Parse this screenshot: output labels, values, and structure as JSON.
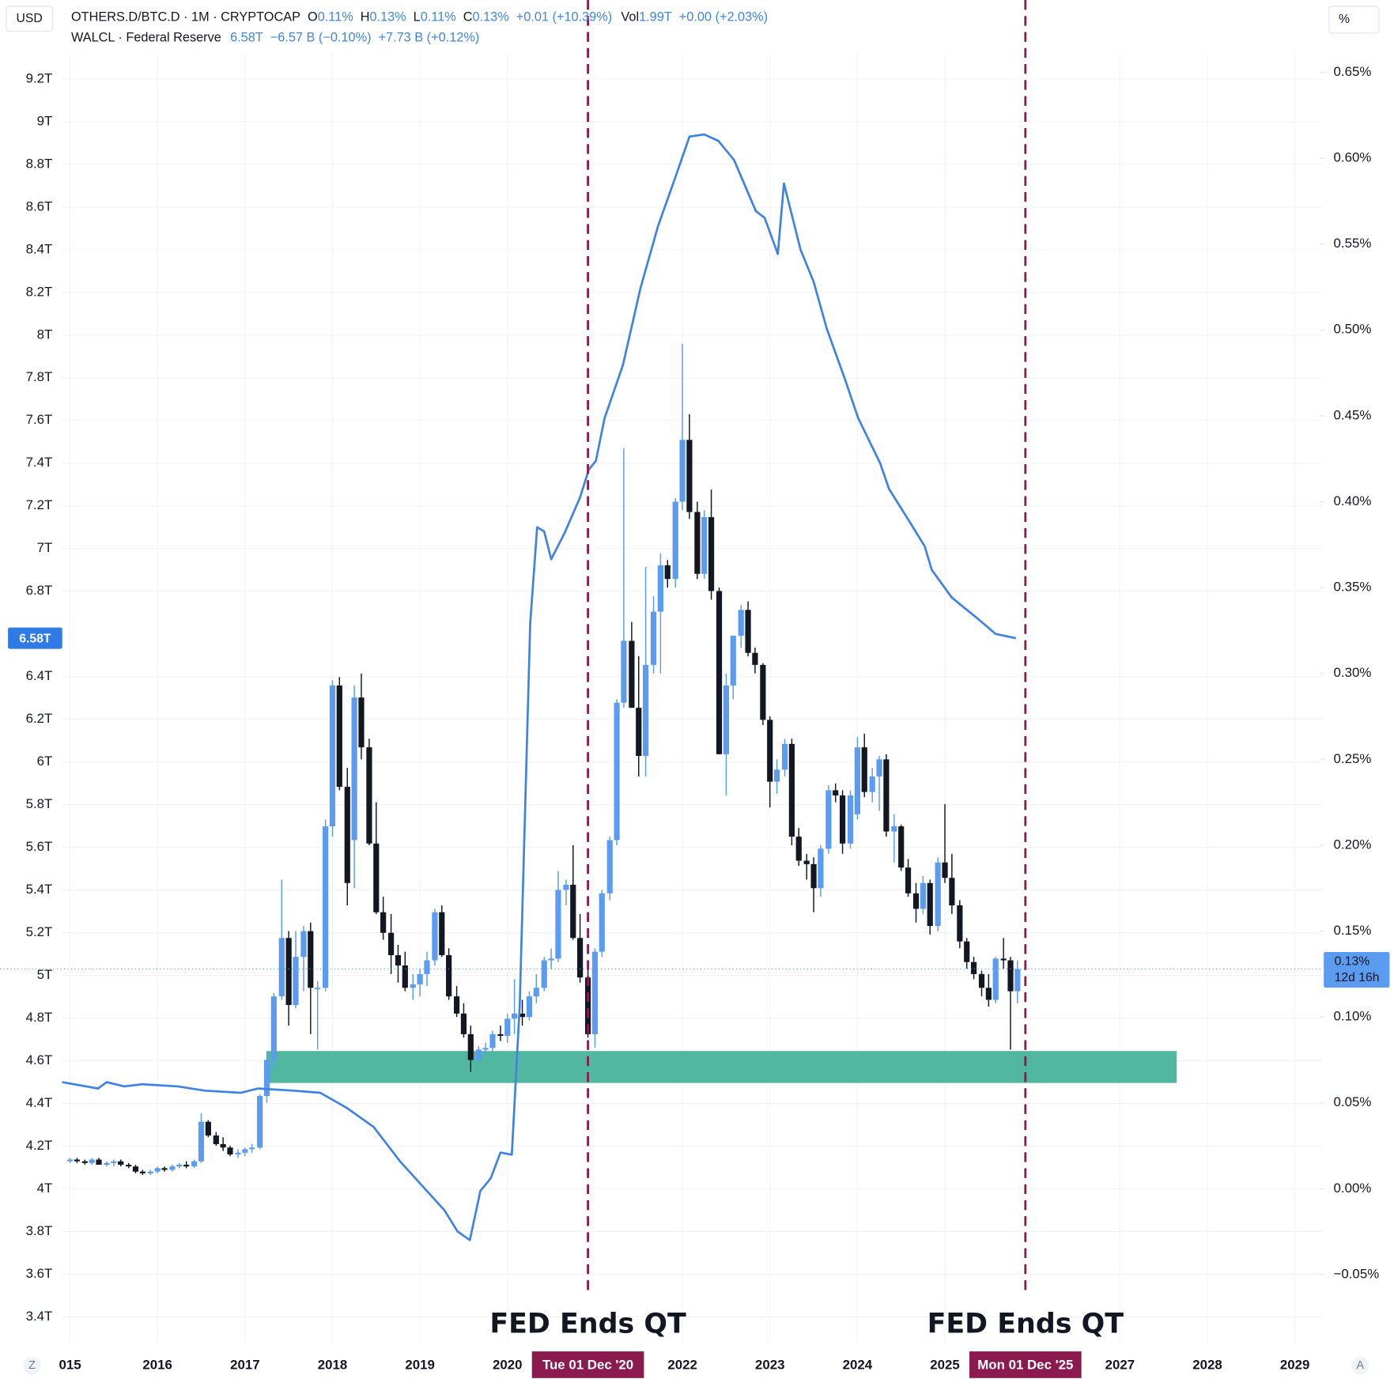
{
  "chart_data": {
    "type": "candlestick",
    "units": {
      "left": "USD",
      "right": "%"
    },
    "corner_buttons": [
      "Z",
      "A"
    ],
    "legend": {
      "symbol": "OTHERS.D/BTC.D · 1M · CRYPTOCAP",
      "o_label": "O",
      "o": "0.11%",
      "h_label": "H",
      "h": "0.13%",
      "l_label": "L",
      "l": "0.11%",
      "c_label": "C",
      "c": "0.13%",
      "change": "+0.01 (+10.39%)",
      "vol_label": "Vol",
      "vol": "1.99T",
      "vol_change": "+0.00 (+2.03%)",
      "line_value": "6.58T",
      "line_change": "−6.57 B (−0.10%)",
      "line_change2": "+7.73 B (+0.12%)"
    },
    "axis": "y2",
    "up_color": "#5b9bf0",
    "down_color": "#131722",
    "x": [
      2015.0,
      2015.08,
      2015.17,
      2015.25,
      2015.33,
      2015.42,
      2015.5,
      2015.58,
      2015.67,
      2015.75,
      2015.83,
      2015.92,
      2016.0,
      2016.08,
      2016.17,
      2016.25,
      2016.33,
      2016.42,
      2016.5,
      2016.58,
      2016.67,
      2016.75,
      2016.83,
      2016.92,
      2017.0,
      2017.08,
      2017.17,
      2017.25,
      2017.33,
      2017.42,
      2017.5,
      2017.58,
      2017.67,
      2017.75,
      2017.83,
      2017.92,
      2018.0,
      2018.08,
      2018.17,
      2018.25,
      2018.33,
      2018.42,
      2018.5,
      2018.58,
      2018.67,
      2018.75,
      2018.83,
      2018.92,
      2019.0,
      2019.08,
      2019.17,
      2019.25,
      2019.33,
      2019.42,
      2019.5,
      2019.58,
      2019.67,
      2019.75,
      2019.83,
      2019.92,
      2020.0,
      2020.08,
      2020.17,
      2020.25,
      2020.33,
      2020.42,
      2020.5,
      2020.58,
      2020.67,
      2020.75,
      2020.83,
      2020.92,
      2021.0,
      2021.08,
      2021.17,
      2021.25,
      2021.33,
      2021.42,
      2021.5,
      2021.58,
      2021.67,
      2021.75,
      2021.83,
      2021.92,
      2022.0,
      2022.08,
      2022.17,
      2022.25,
      2022.33,
      2022.42,
      2022.5,
      2022.58,
      2022.67,
      2022.75,
      2022.83,
      2022.92,
      2023.0,
      2023.08,
      2023.17,
      2023.25,
      2023.33,
      2023.42,
      2023.5,
      2023.58,
      2023.67,
      2023.75,
      2023.83,
      2023.92,
      2024.0,
      2024.08,
      2024.17,
      2024.25,
      2024.33,
      2024.42,
      2024.5,
      2024.58,
      2024.67,
      2024.75,
      2024.83,
      2024.92,
      2025.0,
      2025.08,
      2025.17,
      2025.25,
      2025.33,
      2025.42,
      2025.5,
      2025.58,
      2025.67,
      2025.75,
      2025.83
    ],
    "open": [
      0.016,
      0.017,
      0.016,
      0.015,
      0.017,
      0.014,
      0.015,
      0.016,
      0.014,
      0.013,
      0.01,
      0.009,
      0.01,
      0.012,
      0.011,
      0.013,
      0.014,
      0.013,
      0.016,
      0.039,
      0.031,
      0.026,
      0.024,
      0.02,
      0.021,
      0.023,
      0.024,
      0.054,
      0.075,
      0.112,
      0.146,
      0.107,
      0.135,
      0.15,
      0.117,
      0.117,
      0.211,
      0.293,
      0.234,
      0.203,
      0.286,
      0.257,
      0.201,
      0.161,
      0.149,
      0.136,
      0.13,
      0.117,
      0.119,
      0.125,
      0.133,
      0.161,
      0.136,
      0.112,
      0.102,
      0.09,
      0.075,
      0.081,
      0.082,
      0.09,
      0.089,
      0.099,
      0.102,
      0.1,
      0.112,
      0.117,
      0.133,
      0.134,
      0.174,
      0.177,
      0.146,
      0.123,
      0.09,
      0.138,
      0.172,
      0.203,
      0.283,
      0.319,
      0.28,
      0.252,
      0.305,
      0.336,
      0.363,
      0.355,
      0.4,
      0.436,
      0.394,
      0.358,
      0.391,
      0.348,
      0.253,
      0.293,
      0.322,
      0.337,
      0.312,
      0.305,
      0.273,
      0.237,
      0.244,
      0.259,
      0.205,
      0.191,
      0.189,
      0.175,
      0.198,
      0.232,
      0.229,
      0.201,
      0.218,
      0.257,
      0.231,
      0.24,
      0.25,
      0.208,
      0.211,
      0.187,
      0.172,
      0.163,
      0.178,
      0.153,
      0.19,
      0.181,
      0.165,
      0.144,
      0.132,
      0.125,
      0.117,
      0.11,
      0.134,
      0.133,
      0.115
    ],
    "high": [
      0.018,
      0.018,
      0.017,
      0.018,
      0.018,
      0.016,
      0.017,
      0.017,
      0.015,
      0.014,
      0.011,
      0.011,
      0.013,
      0.013,
      0.014,
      0.015,
      0.016,
      0.017,
      0.044,
      0.04,
      0.033,
      0.03,
      0.025,
      0.023,
      0.024,
      0.026,
      0.055,
      0.08,
      0.114,
      0.18,
      0.15,
      0.15,
      0.153,
      0.155,
      0.121,
      0.215,
      0.296,
      0.298,
      0.245,
      0.293,
      0.3,
      0.262,
      0.225,
      0.17,
      0.16,
      0.142,
      0.138,
      0.125,
      0.128,
      0.138,
      0.163,
      0.165,
      0.14,
      0.118,
      0.108,
      0.095,
      0.083,
      0.085,
      0.092,
      0.095,
      0.102,
      0.122,
      0.11,
      0.115,
      0.125,
      0.135,
      0.14,
      0.185,
      0.18,
      0.2,
      0.16,
      0.13,
      0.14,
      0.174,
      0.205,
      0.285,
      0.431,
      0.33,
      0.31,
      0.362,
      0.345,
      0.37,
      0.366,
      0.402,
      0.492,
      0.451,
      0.4,
      0.395,
      0.407,
      0.35,
      0.3,
      0.322,
      0.34,
      0.342,
      0.315,
      0.306,
      0.275,
      0.25,
      0.262,
      0.262,
      0.21,
      0.195,
      0.193,
      0.2,
      0.235,
      0.236,
      0.232,
      0.232,
      0.263,
      0.265,
      0.245,
      0.252,
      0.253,
      0.218,
      0.212,
      0.192,
      0.178,
      0.182,
      0.18,
      0.193,
      0.224,
      0.195,
      0.168,
      0.146,
      0.135,
      0.127,
      0.125,
      0.135,
      0.146,
      0.135,
      0.133
    ],
    "low": [
      0.015,
      0.015,
      0.014,
      0.014,
      0.014,
      0.013,
      0.013,
      0.013,
      0.012,
      0.009,
      0.008,
      0.008,
      0.009,
      0.01,
      0.01,
      0.012,
      0.012,
      0.012,
      0.015,
      0.03,
      0.025,
      0.022,
      0.019,
      0.018,
      0.019,
      0.021,
      0.023,
      0.05,
      0.07,
      0.11,
      0.095,
      0.105,
      0.115,
      0.09,
      0.081,
      0.115,
      0.205,
      0.232,
      0.165,
      0.175,
      0.25,
      0.2,
      0.16,
      0.145,
      0.125,
      0.12,
      0.115,
      0.11,
      0.112,
      0.118,
      0.13,
      0.135,
      0.11,
      0.1,
      0.088,
      0.068,
      0.073,
      0.078,
      0.08,
      0.086,
      0.085,
      0.09,
      0.095,
      0.098,
      0.108,
      0.115,
      0.128,
      0.132,
      0.165,
      0.145,
      0.12,
      0.088,
      0.082,
      0.135,
      0.168,
      0.2,
      0.28,
      0.28,
      0.24,
      0.24,
      0.3,
      0.3,
      0.35,
      0.35,
      0.395,
      0.39,
      0.355,
      0.355,
      0.343,
      0.253,
      0.229,
      0.285,
      0.315,
      0.31,
      0.3,
      0.27,
      0.222,
      0.23,
      0.24,
      0.2,
      0.188,
      0.18,
      0.161,
      0.17,
      0.195,
      0.225,
      0.195,
      0.198,
      0.215,
      0.228,
      0.225,
      0.22,
      0.205,
      0.19,
      0.185,
      0.17,
      0.155,
      0.16,
      0.148,
      0.15,
      0.178,
      0.16,
      0.14,
      0.128,
      0.122,
      0.112,
      0.106,
      0.108,
      0.128,
      0.081,
      0.108
    ],
    "close": [
      0.017,
      0.016,
      0.015,
      0.017,
      0.014,
      0.015,
      0.016,
      0.014,
      0.013,
      0.01,
      0.009,
      0.01,
      0.012,
      0.011,
      0.013,
      0.014,
      0.013,
      0.016,
      0.039,
      0.031,
      0.026,
      0.024,
      0.02,
      0.021,
      0.023,
      0.024,
      0.054,
      0.075,
      0.112,
      0.146,
      0.107,
      0.135,
      0.15,
      0.117,
      0.117,
      0.211,
      0.293,
      0.234,
      0.178,
      0.286,
      0.257,
      0.201,
      0.161,
      0.149,
      0.136,
      0.13,
      0.117,
      0.119,
      0.125,
      0.133,
      0.161,
      0.136,
      0.112,
      0.102,
      0.09,
      0.075,
      0.081,
      0.082,
      0.09,
      0.089,
      0.099,
      0.102,
      0.1,
      0.112,
      0.117,
      0.133,
      0.134,
      0.174,
      0.177,
      0.146,
      0.123,
      0.09,
      0.138,
      0.172,
      0.203,
      0.283,
      0.319,
      0.28,
      0.252,
      0.305,
      0.336,
      0.363,
      0.355,
      0.4,
      0.436,
      0.394,
      0.358,
      0.391,
      0.348,
      0.253,
      0.293,
      0.322,
      0.337,
      0.312,
      0.305,
      0.273,
      0.237,
      0.244,
      0.259,
      0.205,
      0.191,
      0.189,
      0.175,
      0.198,
      0.232,
      0.229,
      0.201,
      0.229,
      0.257,
      0.231,
      0.24,
      0.25,
      0.208,
      0.211,
      0.187,
      0.172,
      0.163,
      0.178,
      0.153,
      0.19,
      0.181,
      0.165,
      0.144,
      0.132,
      0.125,
      0.117,
      0.11,
      0.134,
      0.133,
      0.115,
      0.128
    ],
    "lines": [
      {
        "name": "WALCL · Federal Reserve",
        "color": "#3f82e6",
        "axis": "y",
        "x": [
          2014.91,
          2015.32,
          2015.42,
          2015.62,
          2015.83,
          2016.23,
          2016.54,
          2016.95,
          2017.15,
          2017.55,
          2017.86,
          2018.16,
          2018.47,
          2018.77,
          2019.08,
          2019.28,
          2019.43,
          2019.57,
          2019.69,
          2019.81,
          2019.92,
          2020.05,
          2020.14,
          2020.26,
          2020.34,
          2020.42,
          2020.5,
          2020.65,
          2020.83,
          2020.93,
          2021.01,
          2021.11,
          2021.32,
          2021.52,
          2021.72,
          2021.92,
          2022.08,
          2022.25,
          2022.41,
          2022.59,
          2022.84,
          2022.94,
          2023.09,
          2023.16,
          2023.35,
          2023.5,
          2023.65,
          2023.86,
          2024.01,
          2024.26,
          2024.36,
          2024.62,
          2024.77,
          2024.85,
          2025.08,
          2025.38,
          2025.58,
          2025.81
        ],
        "values": [
          4.5,
          4.47,
          4.5,
          4.48,
          4.49,
          4.48,
          4.46,
          4.45,
          4.47,
          4.46,
          4.45,
          4.38,
          4.29,
          4.13,
          3.99,
          3.9,
          3.8,
          3.76,
          3.99,
          4.05,
          4.17,
          4.16,
          4.86,
          6.65,
          7.1,
          7.08,
          6.95,
          7.07,
          7.24,
          7.37,
          7.41,
          7.61,
          7.86,
          8.22,
          8.51,
          8.74,
          8.93,
          8.94,
          8.91,
          8.82,
          8.58,
          8.55,
          8.38,
          8.71,
          8.4,
          8.25,
          8.03,
          7.79,
          7.61,
          7.4,
          7.28,
          7.11,
          7.01,
          6.9,
          6.77,
          6.67,
          6.6,
          6.58
        ]
      }
    ],
    "line_badge": {
      "value": 6.58,
      "label": "6.58T",
      "color": "#2f7be6"
    },
    "price_badge": {
      "value": 0.128,
      "label": "0.13%",
      "countdown": "12d 16h",
      "color": "#5b9bf0"
    },
    "zone": {
      "x": [
        2017.25,
        2027.65
      ],
      "y": [
        0.0616,
        0.0802
      ],
      "color": "#52b7a0"
    },
    "markers": [
      {
        "x": {
          "value": 2020.92,
          "label": "Tue 01 Dec '20"
        },
        "text": "FED Ends QT",
        "color": "#8b1a4f"
      },
      {
        "x": {
          "value": 2025.92,
          "label": "Mon 01 Dec '25"
        },
        "text": "FED Ends QT",
        "color": "#8b1a4f"
      }
    ],
    "xlim": [
      2014.2,
      2029.31
    ],
    "xticks": [
      {
        "value": 2015,
        "label": "015"
      },
      2016,
      2017,
      2018,
      2019,
      2020,
      2022,
      2023,
      2024,
      2025,
      2027,
      2028,
      2029
    ],
    "ylim": [
      3.28,
      9.32
    ],
    "yticks": [
      {
        "value": 3.4,
        "label": "3.4T"
      },
      {
        "value": 3.6,
        "label": "3.6T"
      },
      {
        "value": 3.8,
        "label": "3.8T"
      },
      {
        "value": 4,
        "label": "4T"
      },
      {
        "value": 4.2,
        "label": "4.2T"
      },
      {
        "value": 4.4,
        "label": "4.4T"
      },
      {
        "value": 4.6,
        "label": "4.6T"
      },
      {
        "value": 4.8,
        "label": "4.8T"
      },
      {
        "value": 5,
        "label": "5T"
      },
      {
        "value": 5.2,
        "label": "5.2T"
      },
      {
        "value": 5.4,
        "label": "5.4T"
      },
      {
        "value": 5.6,
        "label": "5.6T"
      },
      {
        "value": 5.8,
        "label": "5.8T"
      },
      {
        "value": 6,
        "label": "6T"
      },
      {
        "value": 6.2,
        "label": "6.2T"
      },
      {
        "value": 6.4,
        "label": "6.4T"
      },
      {
        "value": 6.8,
        "label": "6.8T"
      },
      {
        "value": 7,
        "label": "7T"
      },
      {
        "value": 7.2,
        "label": "7.2T"
      },
      {
        "value": 7.4,
        "label": "7.4T"
      },
      {
        "value": 7.6,
        "label": "7.6T"
      },
      {
        "value": 7.8,
        "label": "7.8T"
      },
      {
        "value": 8,
        "label": "8T"
      },
      {
        "value": 8.2,
        "label": "8.2T"
      },
      {
        "value": 8.4,
        "label": "8.4T"
      },
      {
        "value": 8.6,
        "label": "8.6T"
      },
      {
        "value": 8.8,
        "label": "8.8T"
      },
      {
        "value": 9,
        "label": "9T"
      },
      {
        "value": 9.2,
        "label": "9.2T"
      }
    ],
    "y2lim": [
      -0.0895,
      0.661
    ],
    "y2ticks": [
      {
        "value": -0.05,
        "label": "−0.05%"
      },
      {
        "value": 0,
        "label": "0.00%"
      },
      {
        "value": 0.05,
        "label": "0.05%"
      },
      {
        "value": 0.1,
        "label": "0.10%"
      },
      {
        "value": 0.15,
        "label": "0.15%"
      },
      {
        "value": 0.2,
        "label": "0.20%"
      },
      {
        "value": 0.25,
        "label": "0.25%"
      },
      {
        "value": 0.3,
        "label": "0.30%"
      },
      {
        "value": 0.35,
        "label": "0.35%"
      },
      {
        "value": 0.4,
        "label": "0.40%"
      },
      {
        "value": 0.45,
        "label": "0.45%"
      },
      {
        "value": 0.5,
        "label": "0.50%"
      },
      {
        "value": 0.55,
        "label": "0.55%"
      },
      {
        "value": 0.6,
        "label": "0.60%"
      },
      {
        "value": 0.65,
        "label": "0.65%"
      }
    ],
    "grid": true
  }
}
